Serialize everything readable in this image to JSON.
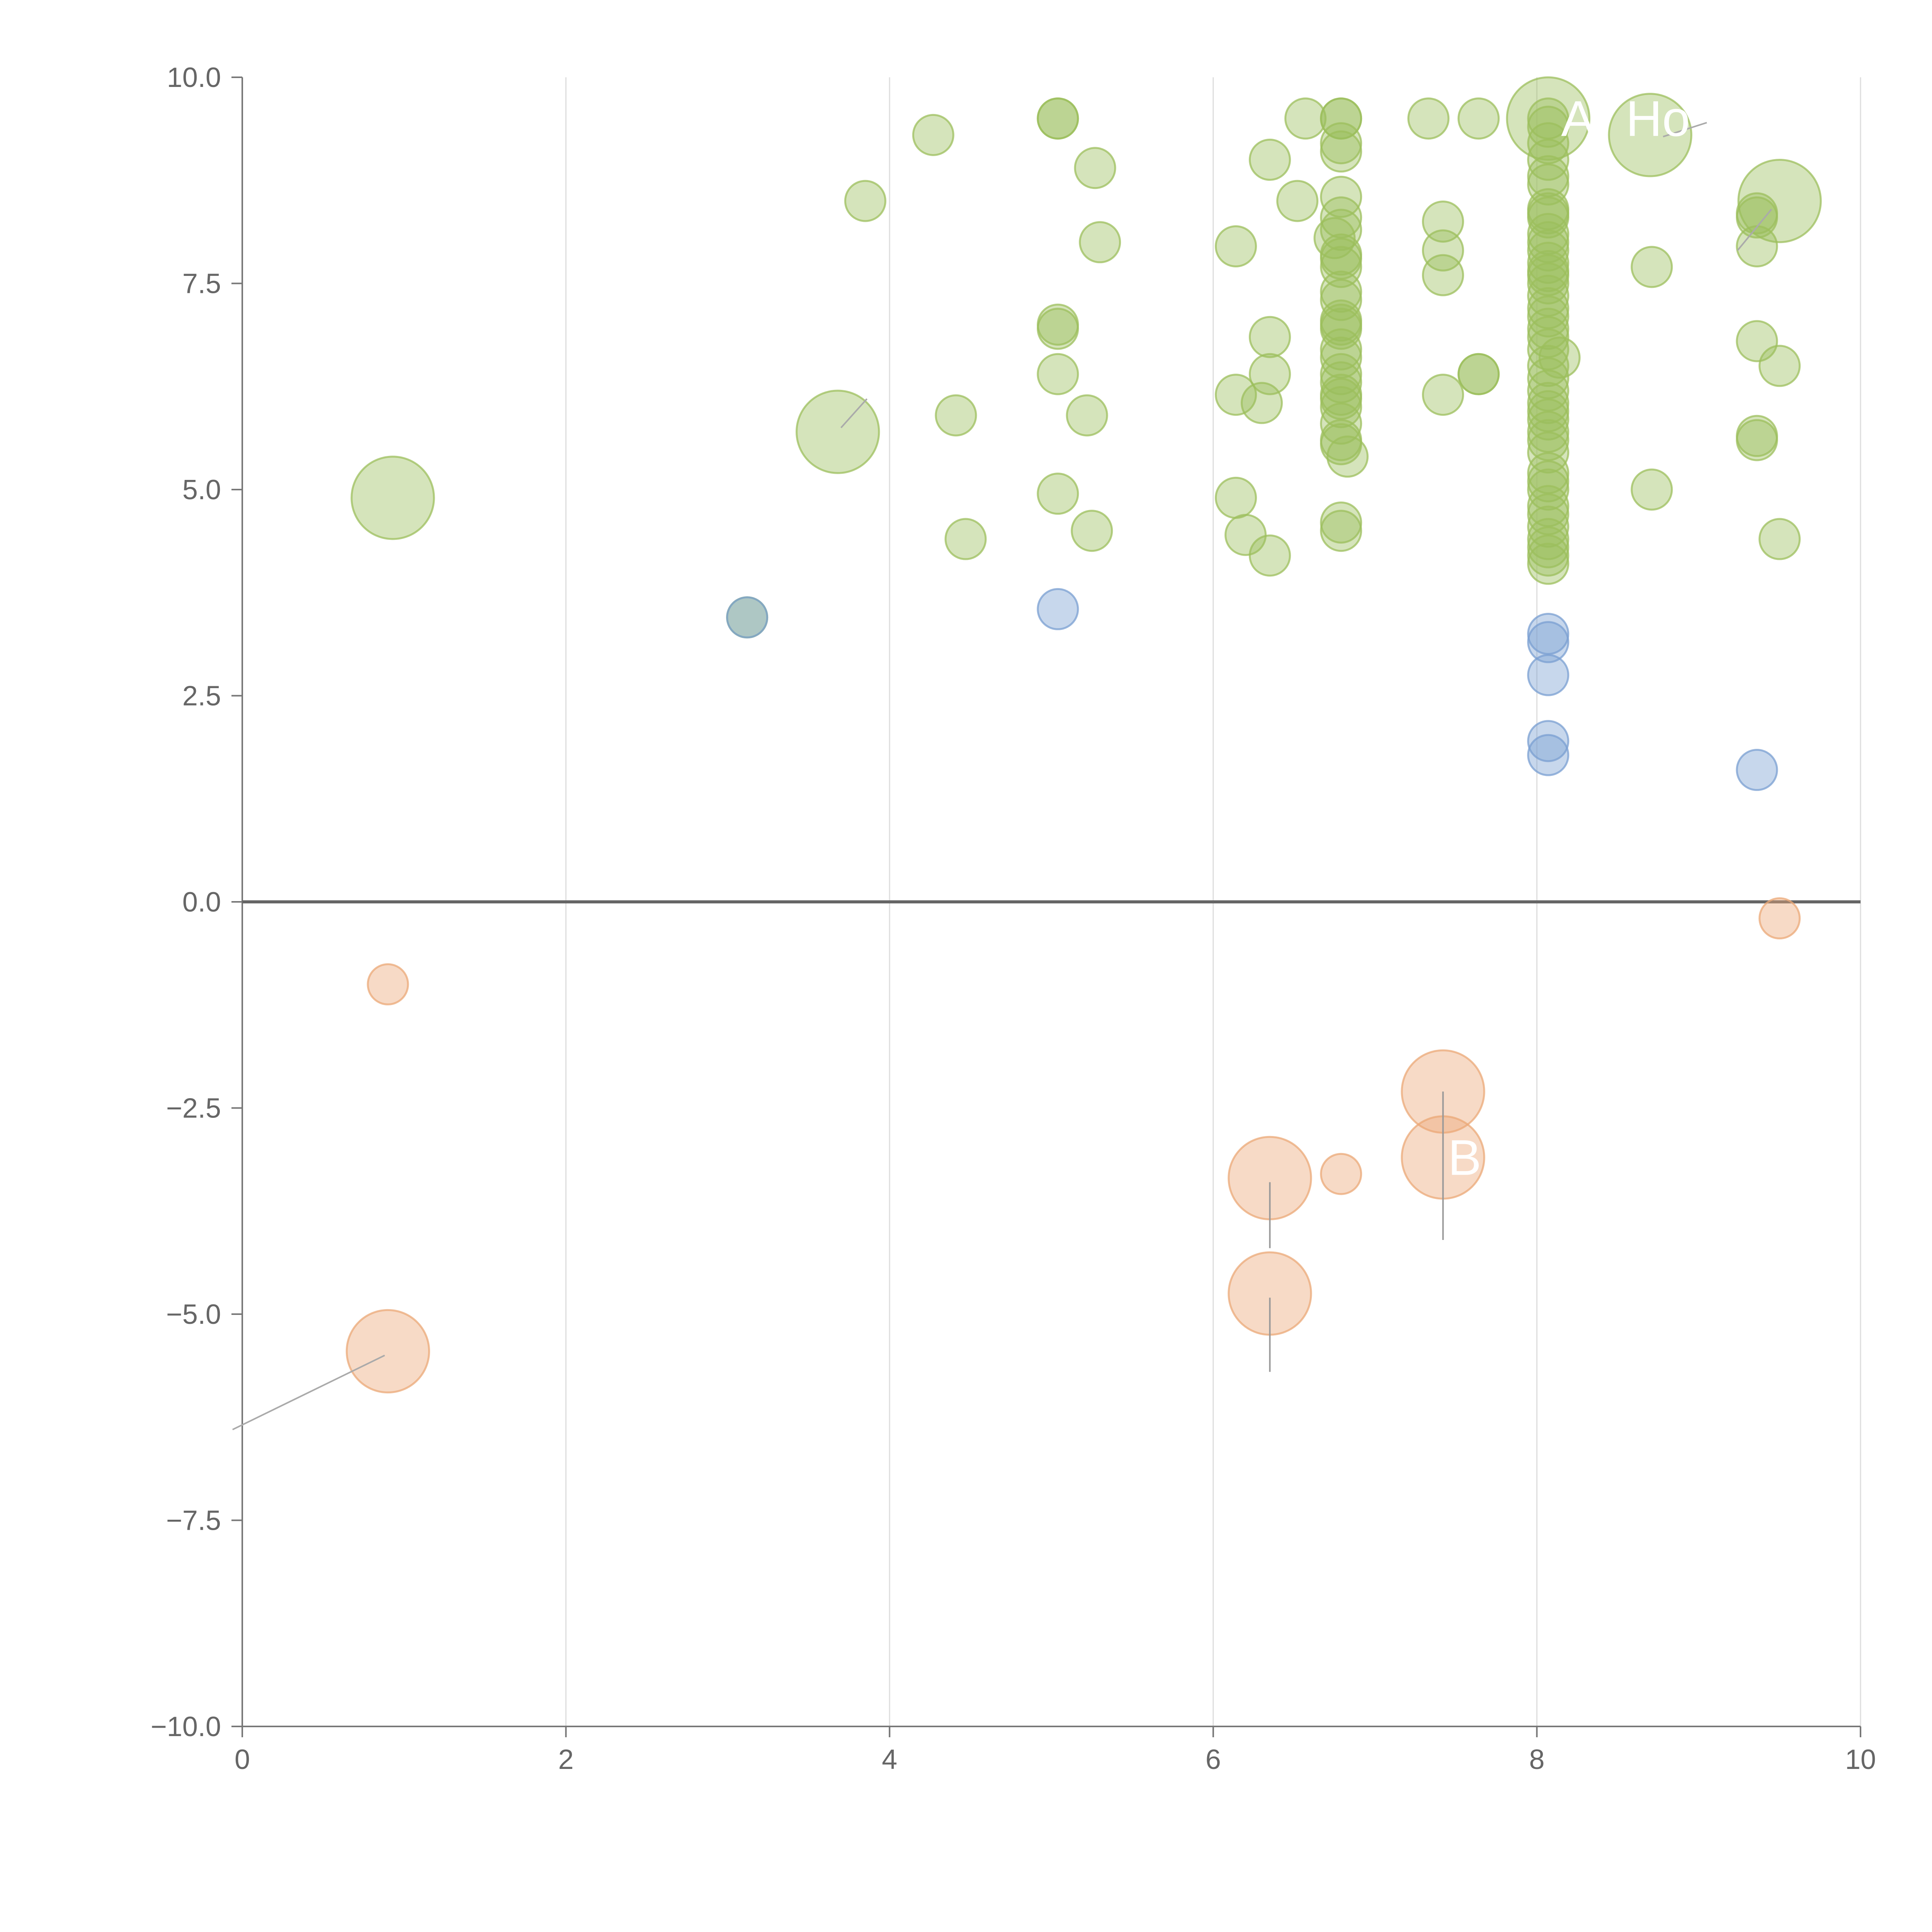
{
  "chart_data": {
    "type": "scatter",
    "title": "",
    "xlabel": "",
    "ylabel": "",
    "xlim": [
      0,
      10
    ],
    "ylim": [
      -10,
      10
    ],
    "x_ticks": [
      "0",
      "2",
      "4",
      "6",
      "8",
      "10"
    ],
    "y_ticks": [
      "10.0",
      "7.5",
      "5.0",
      "2.5",
      "0.0",
      "−2.5",
      "−5.0",
      "−7.5",
      "−10.0"
    ],
    "grid": "vertical",
    "baseline": 0,
    "colors": {
      "green": "#9cbf5c",
      "blue": "#7a9fd1",
      "orange": "#eba877",
      "axis": "#777777",
      "grid": "#dddddd",
      "baseline": "#666666"
    },
    "annotations": [
      {
        "text": "A",
        "x": 8.15,
        "y": 9.5
      },
      {
        "text": "Ho",
        "x": 8.55,
        "y": 9.5
      },
      {
        "text": "B",
        "x": 7.45,
        "y": -3.1
      }
    ],
    "series": [
      {
        "color": "green",
        "points": [
          [
            0.93,
            4.9,
            2.0
          ],
          [
            3.68,
            5.7,
            2.0
          ],
          [
            8.7,
            9.3,
            2.0
          ],
          [
            9.5,
            8.5,
            2.0
          ],
          [
            8.07,
            9.5,
            2.0
          ],
          [
            3.12,
            3.45,
            1.0
          ],
          [
            3.85,
            8.5,
            1.0
          ],
          [
            4.27,
            9.3,
            1.0
          ],
          [
            4.41,
            5.9,
            1.0
          ],
          [
            4.47,
            4.4,
            1.0
          ],
          [
            5.04,
            9.5,
            1.0
          ],
          [
            5.04,
            9.5,
            1.0
          ],
          [
            5.04,
            7.0,
            1.0
          ],
          [
            5.04,
            6.95,
            1.0
          ],
          [
            5.04,
            6.4,
            1.0
          ],
          [
            5.04,
            4.95,
            1.0
          ],
          [
            5.22,
            5.9,
            1.0
          ],
          [
            5.25,
            4.5,
            1.0
          ],
          [
            5.27,
            8.9,
            1.0
          ],
          [
            5.3,
            8.0,
            1.0
          ],
          [
            6.14,
            7.95,
            1.0
          ],
          [
            6.14,
            6.15,
            1.0
          ],
          [
            6.14,
            4.9,
            1.0
          ],
          [
            6.2,
            4.45,
            1.0
          ],
          [
            6.3,
            6.05,
            1.0
          ],
          [
            6.35,
            9.0,
            1.0
          ],
          [
            6.35,
            6.85,
            1.0
          ],
          [
            6.35,
            6.4,
            1.0
          ],
          [
            6.35,
            4.2,
            1.0
          ],
          [
            6.52,
            8.5,
            1.0
          ],
          [
            6.57,
            9.5,
            1.0
          ],
          [
            6.79,
            9.5,
            1.0
          ],
          [
            6.79,
            9.5,
            1.0
          ],
          [
            6.79,
            9.2,
            1.0
          ],
          [
            6.79,
            9.1,
            1.0
          ],
          [
            6.79,
            8.55,
            1.0
          ],
          [
            6.79,
            8.3,
            1.0
          ],
          [
            6.79,
            8.15,
            1.0
          ],
          [
            6.75,
            8.05,
            1.0
          ],
          [
            6.79,
            7.85,
            1.0
          ],
          [
            6.79,
            7.8,
            1.0
          ],
          [
            6.79,
            7.7,
            1.0
          ],
          [
            6.79,
            7.4,
            1.0
          ],
          [
            6.79,
            7.3,
            1.0
          ],
          [
            6.79,
            7.05,
            1.0
          ],
          [
            6.79,
            7.0,
            1.0
          ],
          [
            6.79,
            6.95,
            1.0
          ],
          [
            6.79,
            6.7,
            1.0
          ],
          [
            6.79,
            6.6,
            1.0
          ],
          [
            6.79,
            6.4,
            1.0
          ],
          [
            6.79,
            6.3,
            1.0
          ],
          [
            6.79,
            6.15,
            1.0
          ],
          [
            6.79,
            6.1,
            1.0
          ],
          [
            6.79,
            6.0,
            1.0
          ],
          [
            6.79,
            5.8,
            1.0
          ],
          [
            6.79,
            5.6,
            1.0
          ],
          [
            6.79,
            5.55,
            1.0
          ],
          [
            6.83,
            5.4,
            1.0
          ],
          [
            6.79,
            4.6,
            1.0
          ],
          [
            6.79,
            4.5,
            1.0
          ],
          [
            7.33,
            9.5,
            1.0
          ],
          [
            7.42,
            8.25,
            1.0
          ],
          [
            7.42,
            7.9,
            1.0
          ],
          [
            7.42,
            7.6,
            1.0
          ],
          [
            7.42,
            6.15,
            1.0
          ],
          [
            7.64,
            9.5,
            1.0
          ],
          [
            7.64,
            6.4,
            1.0
          ],
          [
            7.64,
            6.4,
            1.0
          ],
          [
            8.07,
            9.5,
            1.0
          ],
          [
            8.07,
            9.4,
            1.0
          ],
          [
            8.07,
            9.2,
            1.0
          ],
          [
            8.07,
            9.0,
            1.0
          ],
          [
            8.07,
            8.8,
            1.0
          ],
          [
            8.07,
            8.7,
            1.0
          ],
          [
            8.07,
            8.4,
            1.0
          ],
          [
            8.07,
            8.35,
            1.0
          ],
          [
            8.07,
            8.3,
            1.0
          ],
          [
            8.07,
            8.1,
            1.0
          ],
          [
            8.07,
            8.0,
            1.0
          ],
          [
            8.07,
            7.9,
            1.0
          ],
          [
            8.07,
            7.75,
            1.0
          ],
          [
            8.07,
            7.65,
            1.0
          ],
          [
            8.07,
            7.6,
            1.0
          ],
          [
            8.07,
            7.5,
            1.0
          ],
          [
            8.07,
            7.35,
            1.0
          ],
          [
            8.07,
            7.2,
            1.0
          ],
          [
            8.07,
            7.1,
            1.0
          ],
          [
            8.07,
            6.95,
            1.0
          ],
          [
            8.07,
            6.85,
            1.0
          ],
          [
            8.07,
            6.7,
            1.0
          ],
          [
            8.14,
            6.6,
            1.0
          ],
          [
            8.07,
            6.5,
            1.0
          ],
          [
            8.07,
            6.35,
            1.0
          ],
          [
            8.07,
            6.2,
            1.0
          ],
          [
            8.07,
            6.05,
            1.0
          ],
          [
            8.07,
            5.95,
            1.0
          ],
          [
            8.07,
            5.85,
            1.0
          ],
          [
            8.07,
            5.7,
            1.0
          ],
          [
            8.07,
            5.6,
            1.0
          ],
          [
            8.07,
            5.45,
            1.0
          ],
          [
            8.07,
            5.2,
            1.0
          ],
          [
            8.07,
            5.1,
            1.0
          ],
          [
            8.07,
            5.0,
            1.0
          ],
          [
            8.07,
            4.8,
            1.0
          ],
          [
            8.07,
            4.7,
            1.0
          ],
          [
            8.07,
            4.55,
            1.0
          ],
          [
            8.07,
            4.4,
            1.0
          ],
          [
            8.07,
            4.3,
            1.0
          ],
          [
            8.07,
            4.2,
            1.0
          ],
          [
            8.07,
            4.1,
            1.0
          ],
          [
            8.71,
            7.7,
            1.0
          ],
          [
            8.71,
            5.0,
            1.0
          ],
          [
            9.36,
            8.35,
            1.0
          ],
          [
            9.36,
            8.3,
            1.0
          ],
          [
            9.36,
            7.95,
            1.0
          ],
          [
            9.36,
            6.8,
            1.0
          ],
          [
            9.36,
            5.65,
            1.0
          ],
          [
            9.36,
            5.6,
            1.0
          ],
          [
            9.5,
            6.5,
            1.0
          ],
          [
            9.5,
            4.4,
            1.0
          ]
        ]
      },
      {
        "color": "blue",
        "points": [
          [
            3.12,
            3.45,
            1.0
          ],
          [
            5.04,
            3.55,
            1.0
          ],
          [
            8.07,
            3.25,
            1.0
          ],
          [
            8.07,
            3.15,
            1.0
          ],
          [
            8.07,
            2.75,
            1.0
          ],
          [
            8.07,
            1.95,
            1.0
          ],
          [
            8.07,
            1.78,
            1.0
          ],
          [
            9.36,
            1.6,
            1.0
          ]
        ]
      },
      {
        "color": "orange",
        "points": [
          [
            0.9,
            -1.0,
            1.0
          ],
          [
            0.9,
            -5.45,
            2.0
          ],
          [
            6.35,
            -3.35,
            2.0
          ],
          [
            6.35,
            -4.75,
            2.0
          ],
          [
            6.79,
            -3.3,
            1.0
          ],
          [
            7.42,
            -2.3,
            2.0
          ],
          [
            7.42,
            -3.1,
            2.0
          ],
          [
            9.5,
            -0.2,
            1.0
          ]
        ]
      }
    ],
    "error_bars": [
      {
        "x": 6.35,
        "y_low": -4.2,
        "y_high": -3.4
      },
      {
        "x": 6.35,
        "y_low": -5.7,
        "y_high": -4.8
      },
      {
        "x": 7.42,
        "y_low": -4.1,
        "y_high": -2.3
      }
    ],
    "leader_lines": [
      {
        "from": [
          0.88,
          -5.5
        ],
        "to": [
          -0.06,
          -6.4
        ]
      },
      {
        "from": [
          3.7,
          5.75
        ],
        "to": [
          3.86,
          6.1
        ]
      },
      {
        "from": [
          8.78,
          9.28
        ],
        "to": [
          9.05,
          9.45
        ]
      },
      {
        "from": [
          9.45,
          8.4
        ],
        "to": [
          9.24,
          7.9
        ]
      }
    ]
  }
}
